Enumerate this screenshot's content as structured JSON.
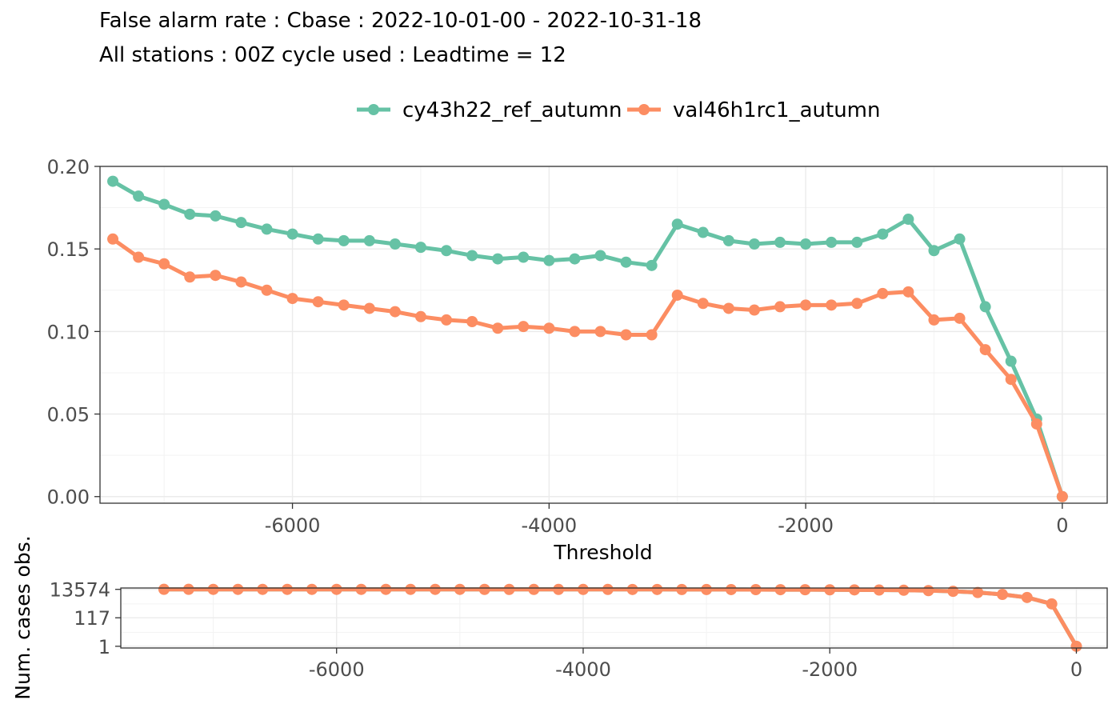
{
  "title_line1": "False alarm rate : Cbase : 2022-10-01-00 - 2022-10-31-18",
  "title_line2": "All stations : 00Z cycle used : Leadtime = 12",
  "colors": {
    "series1": "#66c2a5",
    "series2": "#fc8d62"
  },
  "chart_data": [
    {
      "type": "line",
      "xlabel": "Threshold",
      "ylabel": "",
      "xlim": [
        -7500,
        350
      ],
      "ylim": [
        -0.004,
        0.2
      ],
      "x_ticks": [
        -6000,
        -4000,
        -2000,
        0
      ],
      "x_tick_labels": [
        "-6000",
        "-4000",
        "-2000",
        "0"
      ],
      "y_ticks": [
        0,
        0.05,
        0.1,
        0.15,
        0.2
      ],
      "y_tick_labels": [
        "0.00",
        "0.05",
        "0.10",
        "0.15",
        "0.20"
      ],
      "grid": true,
      "legend": "top",
      "x": [
        -7400,
        -7200,
        -7000,
        -6800,
        -6600,
        -6400,
        -6200,
        -6000,
        -5800,
        -5600,
        -5400,
        -5200,
        -5000,
        -4800,
        -4600,
        -4400,
        -4200,
        -4000,
        -3800,
        -3600,
        -3400,
        -3200,
        -3000,
        -2800,
        -2600,
        -2400,
        -2200,
        -2000,
        -1800,
        -1600,
        -1400,
        -1200,
        -1000,
        -800,
        -600,
        -400,
        -200,
        0
      ],
      "series": [
        {
          "name": "cy43h22_ref_autumn",
          "values": [
            0.191,
            0.182,
            0.177,
            0.171,
            0.17,
            0.166,
            0.162,
            0.159,
            0.156,
            0.155,
            0.155,
            0.153,
            0.151,
            0.149,
            0.146,
            0.144,
            0.145,
            0.143,
            0.144,
            0.146,
            0.142,
            0.14,
            0.165,
            0.16,
            0.155,
            0.153,
            0.154,
            0.153,
            0.154,
            0.154,
            0.159,
            0.168,
            0.149,
            0.156,
            0.115,
            0.082,
            0.047,
            0.0
          ]
        },
        {
          "name": "val46h1rc1_autumn",
          "values": [
            0.156,
            0.145,
            0.141,
            0.133,
            0.134,
            0.13,
            0.125,
            0.12,
            0.118,
            0.116,
            0.114,
            0.112,
            0.109,
            0.107,
            0.106,
            0.102,
            0.103,
            0.102,
            0.1,
            0.1,
            0.098,
            0.098,
            0.122,
            0.117,
            0.114,
            0.113,
            0.115,
            0.116,
            0.116,
            0.117,
            0.123,
            0.124,
            0.107,
            0.108,
            0.089,
            0.071,
            0.044,
            0.0
          ]
        }
      ]
    },
    {
      "type": "line",
      "xlabel": "",
      "ylabel": "Num. cases obs.",
      "y_scale": "log",
      "xlim": [
        -7750,
        250
      ],
      "ylim": [
        0.75,
        17000
      ],
      "x_ticks": [
        -6000,
        -4000,
        -2000,
        0
      ],
      "x_tick_labels": [
        "-6000",
        "-4000",
        "-2000",
        "0"
      ],
      "y_ticks": [
        1,
        117,
        13574
      ],
      "y_tick_labels": [
        "1",
        "117",
        "13574"
      ],
      "grid": true,
      "x": [
        -7400,
        -7200,
        -7000,
        -6800,
        -6600,
        -6400,
        -6200,
        -6000,
        -5800,
        -5600,
        -5400,
        -5200,
        -5000,
        -4800,
        -4600,
        -4400,
        -4200,
        -4000,
        -3800,
        -3600,
        -3400,
        -3200,
        -3000,
        -2800,
        -2600,
        -2400,
        -2200,
        -2000,
        -1800,
        -1600,
        -1400,
        -1200,
        -1000,
        -800,
        -600,
        -400,
        -200,
        0
      ],
      "series": [
        {
          "values": [
            13574,
            13570,
            13565,
            13560,
            13555,
            13550,
            13540,
            13530,
            13520,
            13510,
            13500,
            13490,
            13480,
            13470,
            13450,
            13430,
            13410,
            13390,
            13370,
            13340,
            13300,
            13250,
            13200,
            13100,
            13000,
            12900,
            12800,
            12600,
            12400,
            12100,
            11700,
            11000,
            9800,
            8000,
            5800,
            3500,
            1200,
            1
          ]
        }
      ]
    }
  ]
}
